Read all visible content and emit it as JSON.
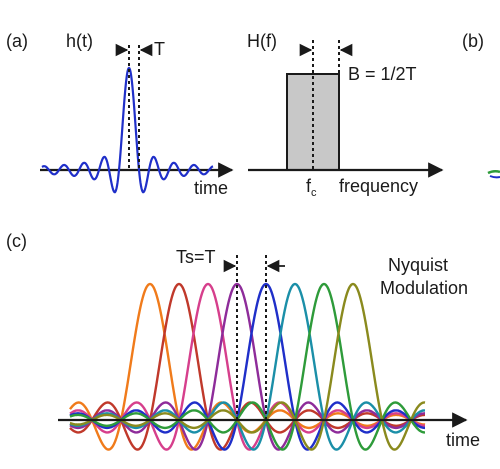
{
  "panels": {
    "a": {
      "tag": "(a)",
      "time_fn": "h(t)",
      "period": "T",
      "time_axis": "time",
      "freq_fn": "H(f)",
      "bandwidth": "B = 1/2T",
      "carrier": "f",
      "carrier_sub": "c",
      "freq_axis": "frequency"
    },
    "b": {
      "tag": "(b)"
    },
    "c": {
      "tag": "(c)",
      "spacing": "Ts=T",
      "title_line1": "Nyquist",
      "title_line2": "Modulation",
      "time_axis": "time"
    }
  },
  "colors": {
    "pulse_a": "#1f2fc9",
    "box_fill": "#c8c8c8",
    "channels": [
      "#f07b1b",
      "#c0392b",
      "#d63f8c",
      "#8e2c9a",
      "#1f2fc9",
      "#1b8fa8",
      "#2e9b3a",
      "#8a8a1e"
    ]
  }
}
